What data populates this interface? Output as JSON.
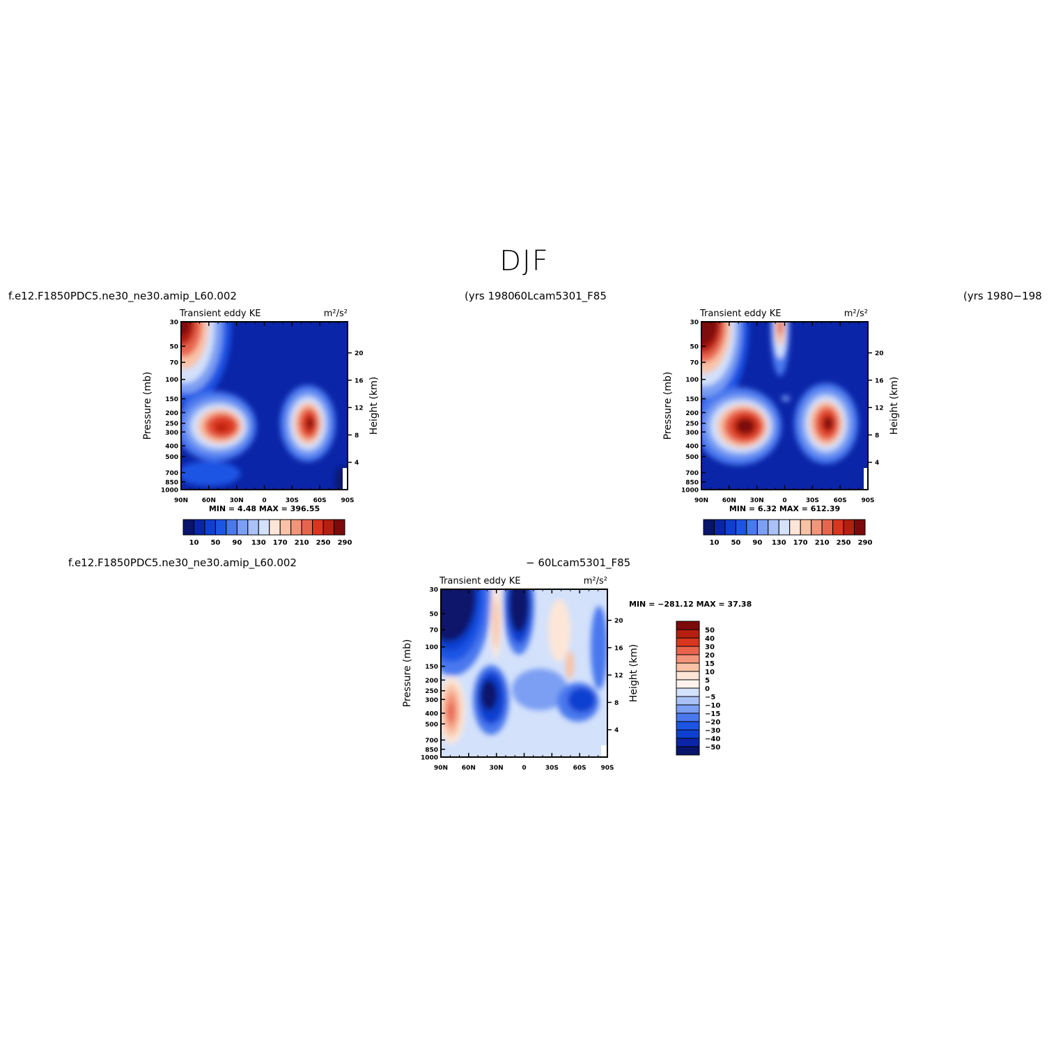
{
  "page": {
    "title": "DJF",
    "case_left": "f.e12.F1850PDC5.ne30_ne30.amip_L60.002",
    "yrs_left": "(yrs 1980",
    "case_right": "60Lcam5301_F85",
    "yrs_right": "(yrs 1980−198",
    "case_diff_left": "f.e12.F1850PDC5.ne30_ne30.amip_L60.002",
    "case_diff_right": "− 60Lcam5301_F85"
  },
  "colors": {
    "abs_scale": [
      "#08156b",
      "#0a25a8",
      "#0e3fd0",
      "#1c54e4",
      "#4a78ee",
      "#7b9ff3",
      "#a9c1f7",
      "#d3e1fb",
      "#fde6d8",
      "#f9c2a6",
      "#f3957b",
      "#e8654d",
      "#d9361f",
      "#b41f10",
      "#7d0a0a"
    ],
    "diff_scale": [
      "#08156b",
      "#0a25a8",
      "#0e3fd0",
      "#1c54e4",
      "#4a78ee",
      "#7b9ff3",
      "#a9c1f7",
      "#d3e1fb",
      "#fdf3ec",
      "#fde6d8",
      "#f9c2a6",
      "#f3957b",
      "#e8654d",
      "#d9361f",
      "#b41f10",
      "#7d0a0a"
    ]
  },
  "chart_data": [
    {
      "id": "panel-1",
      "type": "heatmap",
      "title": "Transient eddy KE",
      "units": "m²/s²",
      "ylabel": "Pressure (mb)",
      "ylabel_right": "Height (km)",
      "x_ticks": [
        "90N",
        "60N",
        "30N",
        "0",
        "30S",
        "60S",
        "90S"
      ],
      "y_ticks": [
        "30",
        "50",
        "70",
        "100",
        "150",
        "200",
        "250",
        "300",
        "400",
        "500",
        "700",
        "850",
        "1000"
      ],
      "y_ticks_right": [
        "20",
        "16",
        "12",
        "8",
        "4"
      ],
      "stats": {
        "min_label": "MIN =",
        "min": "4.48",
        "max_label": "MAX =",
        "max": "396.55"
      },
      "colorbar_ticks": [
        "10",
        "50",
        "90",
        "130",
        "170",
        "210",
        "250",
        "290"
      ],
      "contours": [
        {
          "x": 90,
          "y": 30,
          "cx": 10,
          "cy": 9,
          "rx": 14,
          "ry": 18,
          "value": 350
        },
        {
          "x": 50,
          "y": 300,
          "cx": 10,
          "cy": 24,
          "rx": 14,
          "ry": 9,
          "value": 250
        },
        {
          "x": -50,
          "y": 300,
          "cx": 10,
          "cy": 24,
          "rx": 9,
          "ry": 10,
          "value": 290
        }
      ]
    },
    {
      "id": "panel-2",
      "type": "heatmap",
      "title": "Transient eddy KE",
      "units": "m²/s²",
      "ylabel": "Pressure (mb)",
      "ylabel_right": "Height (km)",
      "x_ticks": [
        "90N",
        "60N",
        "30N",
        "0",
        "30S",
        "60S",
        "90S"
      ],
      "y_ticks": [
        "30",
        "50",
        "70",
        "100",
        "150",
        "200",
        "250",
        "300",
        "400",
        "500",
        "700",
        "850",
        "1000"
      ],
      "y_ticks_right": [
        "20",
        "16",
        "12",
        "8",
        "4"
      ],
      "stats": {
        "min_label": "MIN =",
        "min": "6.32",
        "max_label": "MAX =",
        "max": "612.39"
      },
      "colorbar_ticks": [
        "10",
        "50",
        "90",
        "130",
        "170",
        "210",
        "250",
        "290"
      ],
      "contours": [
        {
          "x": 90,
          "y": 30,
          "value": 400
        },
        {
          "x": 45,
          "y": 300,
          "value": 350
        },
        {
          "x": -50,
          "y": 300,
          "value": 300
        },
        {
          "x": 0,
          "y": 30,
          "value": 200
        }
      ]
    },
    {
      "id": "panel-diff",
      "type": "heatmap",
      "title": "Transient eddy KE",
      "units": "m²/s²",
      "ylabel": "Pressure (mb)",
      "ylabel_right": "Height (km)",
      "x_ticks": [
        "90N",
        "60N",
        "30N",
        "0",
        "30S",
        "60S",
        "90S"
      ],
      "y_ticks": [
        "30",
        "50",
        "70",
        "100",
        "150",
        "200",
        "250",
        "300",
        "400",
        "500",
        "700",
        "850",
        "1000"
      ],
      "y_ticks_right": [
        "20",
        "16",
        "12",
        "8",
        "4"
      ],
      "stats": {
        "min_label": "MIN =",
        "min": "−281.12",
        "max_label": "MAX =",
        "max": "37.38"
      },
      "colorbar_ticks": [
        "50",
        "40",
        "30",
        "20",
        "15",
        "10",
        "5",
        "0",
        "−5",
        "−10",
        "−15",
        "−20",
        "−30",
        "−40",
        "−50"
      ]
    }
  ]
}
